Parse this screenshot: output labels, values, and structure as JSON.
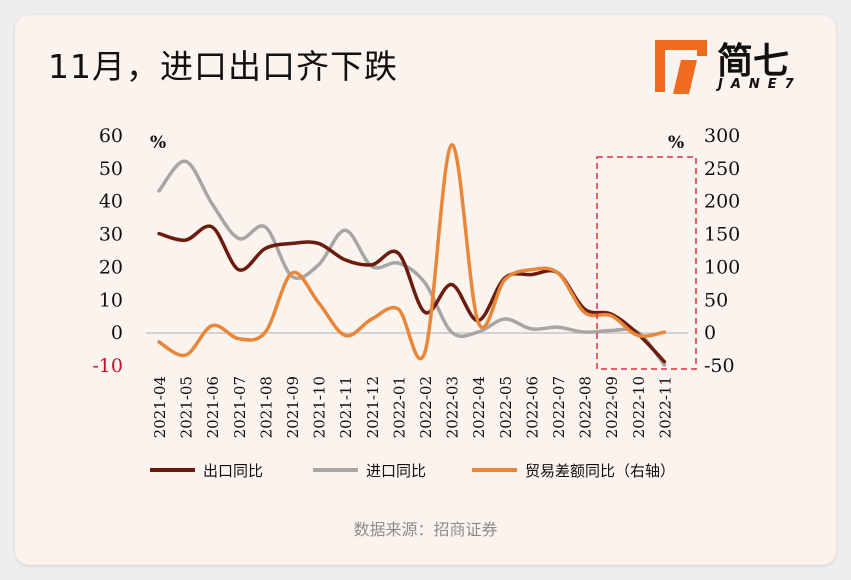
{
  "header": {
    "title": "11月，进口出口齐下跌"
  },
  "logo": {
    "name_cn": "简七",
    "name_en": "JANE7"
  },
  "source": "数据来源：招商证券",
  "colors": {
    "export": "#6b1c0e",
    "import": "#a6a6a6",
    "balance": "#e8873a",
    "highlight_box": "#e0303a",
    "logo_accent": "#f06a1f"
  },
  "chart_data": {
    "type": "line",
    "categories": [
      "2021-04",
      "2021-05",
      "2021-06",
      "2021-07",
      "2021-08",
      "2021-09",
      "2021-10",
      "2021-11",
      "2021-12",
      "2022-01",
      "2022-02",
      "2022-03",
      "2022-04",
      "2022-05",
      "2022-06",
      "2022-07",
      "2022-08",
      "2022-09",
      "2022-10",
      "2022-11"
    ],
    "left_axis": {
      "label": "%",
      "ylim": [
        -10,
        60
      ],
      "ticks": [
        "60",
        "50",
        "40",
        "30",
        "20",
        "10",
        "0",
        "-10"
      ]
    },
    "right_axis": {
      "label": "%",
      "ylim": [
        -50,
        300
      ],
      "ticks": [
        "300",
        "250",
        "200",
        "150",
        "100",
        "50",
        "0",
        "-50"
      ]
    },
    "series": [
      {
        "name": "出口同比",
        "axis": "left",
        "values": [
          30,
          28,
          32,
          19,
          25.5,
          27,
          27,
          22,
          20.5,
          24,
          6,
          14.5,
          3.5,
          16.5,
          17.5,
          18,
          7,
          5.5,
          -0.5,
          -9
        ]
      },
      {
        "name": "进口同比",
        "axis": "left",
        "values": [
          43,
          52,
          39,
          28.5,
          32,
          17,
          20.5,
          31,
          20,
          21,
          15,
          0,
          0,
          4,
          1,
          1.5,
          0,
          0.5,
          0,
          -10
        ]
      },
      {
        "name": "贸易差额同比（右轴）",
        "axis": "right",
        "values": [
          -15,
          -35,
          10,
          -10,
          0,
          90,
          45,
          -5,
          20,
          35,
          -30,
          285,
          15,
          80,
          95,
          90,
          30,
          25,
          -5,
          0
        ]
      }
    ],
    "highlight": {
      "from": "2022-08",
      "to": "2022-11"
    }
  }
}
